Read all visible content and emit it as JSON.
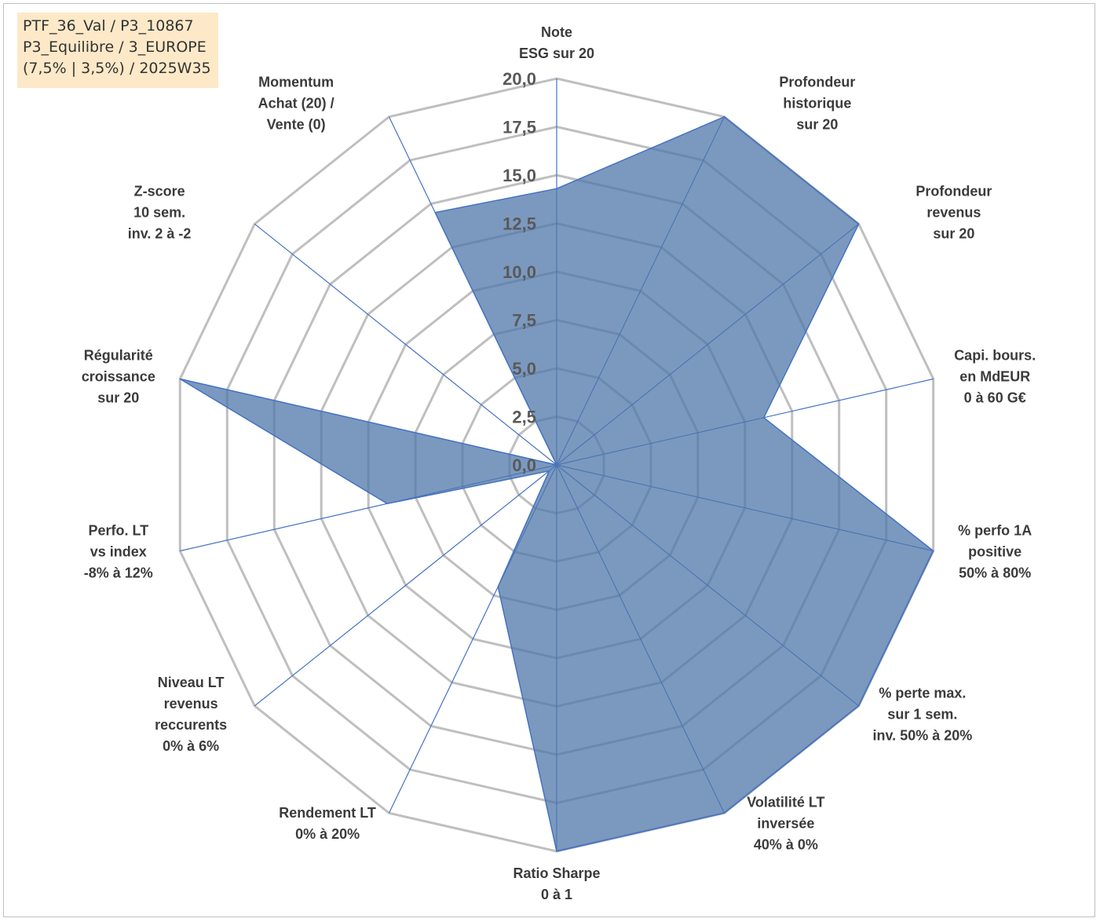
{
  "info_box": {
    "line1": "PTF_36_Val / P3_10867",
    "line2": "P3_Equilibre / 3_EUROPE",
    "line3": "(7,5% | 3,5%) / 2025W35"
  },
  "chart_data": {
    "type": "radar",
    "rlim": [
      0,
      20
    ],
    "grid": true,
    "tick_labels": [
      "0,0",
      "2,5",
      "5,0",
      "7,5",
      "10,0",
      "12,5",
      "15,0",
      "17,5",
      "20,0"
    ],
    "tick_values": [
      0,
      2.5,
      5,
      7.5,
      10,
      12.5,
      15,
      17.5,
      20
    ],
    "categories": [
      [
        "Note",
        "ESG sur 20"
      ],
      [
        "Profondeur",
        "historique",
        "sur 20"
      ],
      [
        "Profondeur",
        "revenus",
        "sur 20"
      ],
      [
        "Capi. bours.",
        "en MdEUR",
        "0 à 60 G€"
      ],
      [
        "% perfo 1A",
        "positive",
        "50% à 80%"
      ],
      [
        "% perte max.",
        "sur 1 sem.",
        "inv. 50% à 20%"
      ],
      [
        "Volatilité LT",
        "inversée",
        "40% à 0%"
      ],
      [
        "Ratio Sharpe",
        "0 à 1"
      ],
      [
        "Rendement LT",
        "0% à 20%"
      ],
      [
        "Niveau LT",
        "revenus",
        "reccurents",
        "0% à 6%"
      ],
      [
        "Perfo. LT",
        "vs index",
        "-8% à 12%"
      ],
      [
        "Régularité",
        "croissance",
        "sur 20"
      ],
      [
        "Z-score",
        "10 sem.",
        "inv. 2 à -2"
      ],
      [
        "Momentum",
        "Achat (20) /",
        "Vente (0)"
      ]
    ],
    "series": [
      {
        "values": [
          14.3,
          20.0,
          20.0,
          11.0,
          20.0,
          20.0,
          20.0,
          20.0,
          7.0,
          0.5,
          9.0,
          20.0,
          0.0,
          14.5
        ],
        "color": "#4f77aa"
      }
    ],
    "colors": {
      "grid": "#bfbfbf",
      "spoke": "#4472c4",
      "fill": "#4f77aa",
      "outline": "#4472c4"
    }
  }
}
